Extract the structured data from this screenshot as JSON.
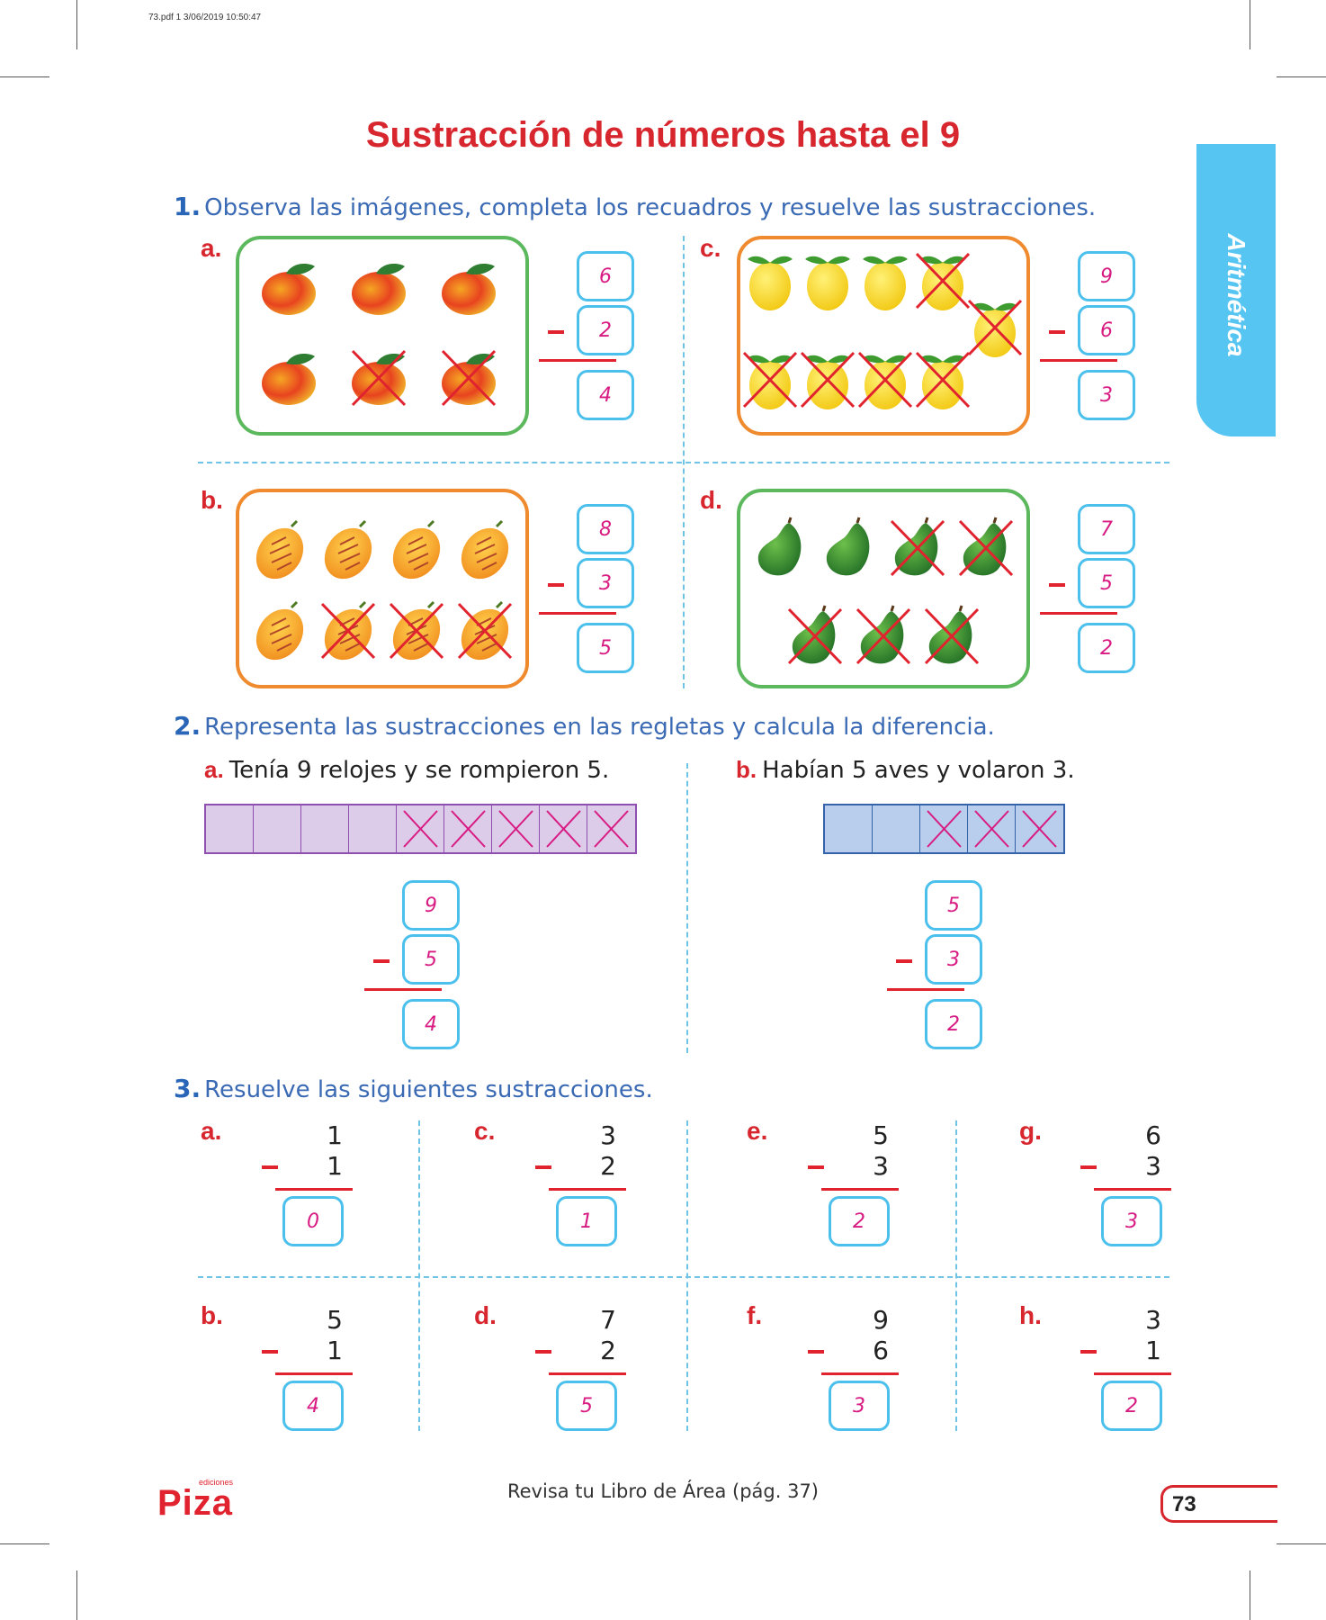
{
  "print_info": "73.pdf   1   3/06/2019   10:50:47",
  "title": "Sustracción de números hasta el 9",
  "side_tab": "Aritmética",
  "ex1": {
    "number": "1.",
    "instruction": "Observa las imágenes, completa los recuadros y resuelve las sustracciones.",
    "items": [
      {
        "letter": "a.",
        "fruit": "mango",
        "top": "6",
        "sub": "2",
        "result": "4"
      },
      {
        "letter": "b.",
        "fruit": "pepino",
        "top": "8",
        "sub": "3",
        "result": "5"
      },
      {
        "letter": "c.",
        "fruit": "lemon",
        "top": "9",
        "sub": "6",
        "result": "3"
      },
      {
        "letter": "d.",
        "fruit": "avocado",
        "top": "7",
        "sub": "5",
        "result": "2"
      }
    ]
  },
  "ex2": {
    "number": "2.",
    "instruction": "Representa las sustracciones en las regletas y calcula la diferencia.",
    "a": {
      "letter": "a.",
      "text": "Tenía 9 relojes y se rompieron 5.",
      "top": "9",
      "sub": "5",
      "result": "4",
      "cells": 9,
      "crossed": 5,
      "fill": "#dccbe9",
      "border": "#8f4fb0"
    },
    "b": {
      "letter": "b.",
      "text": "Habían 5 aves y volaron 3.",
      "top": "5",
      "sub": "3",
      "result": "2",
      "cells": 5,
      "crossed": 3,
      "fill": "#b9cdec",
      "border": "#3563a9"
    }
  },
  "ex3": {
    "number": "3.",
    "instruction": "Resuelve las siguientes sustracciones.",
    "items": [
      {
        "letter": "a.",
        "top": "1",
        "sub": "1",
        "result": "0"
      },
      {
        "letter": "c.",
        "top": "3",
        "sub": "2",
        "result": "1"
      },
      {
        "letter": "e.",
        "top": "5",
        "sub": "3",
        "result": "2"
      },
      {
        "letter": "g.",
        "top": "6",
        "sub": "3",
        "result": "3"
      },
      {
        "letter": "b.",
        "top": "5",
        "sub": "1",
        "result": "4"
      },
      {
        "letter": "d.",
        "top": "7",
        "sub": "2",
        "result": "5"
      },
      {
        "letter": "f.",
        "top": "9",
        "sub": "6",
        "result": "3"
      },
      {
        "letter": "h.",
        "top": "3",
        "sub": "1",
        "result": "2"
      }
    ]
  },
  "footer": "Revisa tu Libro de Área (pág. 37)",
  "page_number": "73",
  "logo": {
    "text": "Piza",
    "small": "ediciones"
  },
  "colors": {
    "red": "#d7262e",
    "blue": "#3b6ab4",
    "cyan": "#4cc0ec",
    "magenta": "#d81b82"
  }
}
